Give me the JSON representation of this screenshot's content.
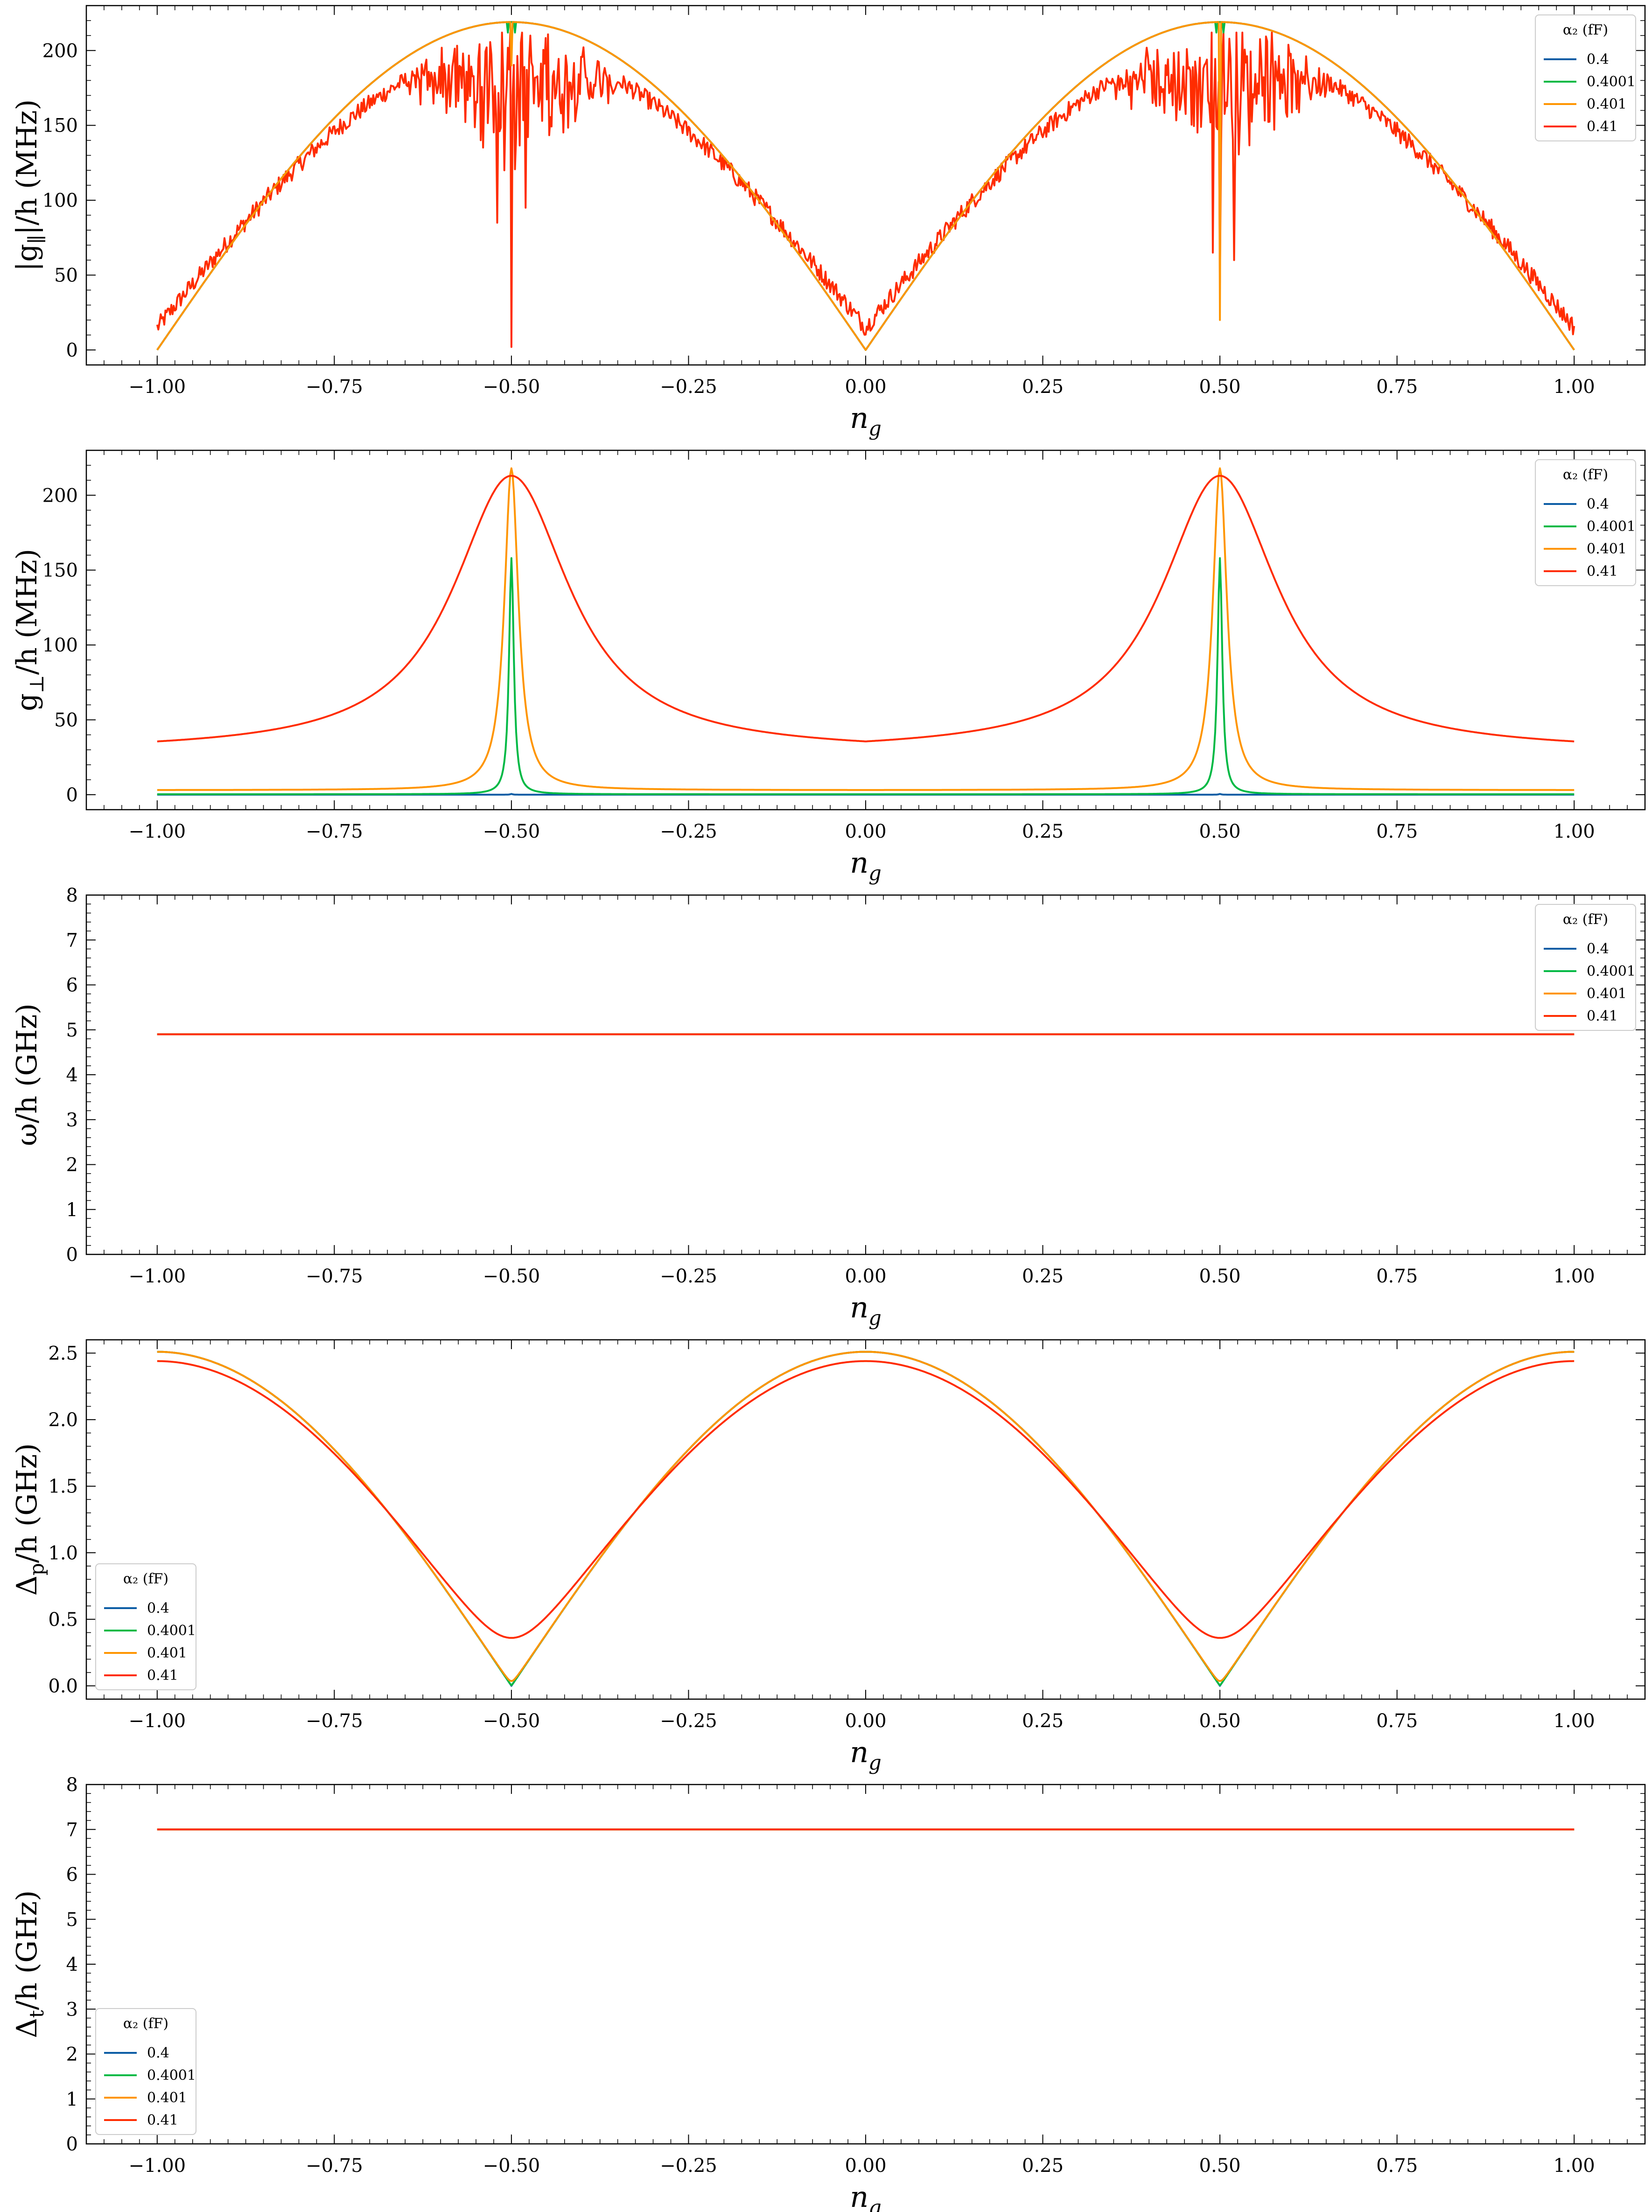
{
  "colors": {
    "s0": "#0C5DA5",
    "s1": "#00B945",
    "s2": "#FF9500",
    "s3": "#FF2C00",
    "axis": "#000000"
  },
  "legend_title": "α₂ (fF)",
  "chart_data": [
    {
      "id": "p1",
      "type": "line",
      "xlabel": "n_g",
      "ylabel": "|g_∥|/h (MHz)",
      "xlim": [
        -1.1,
        1.1
      ],
      "ylim": [
        -10,
        230
      ],
      "xticks": [
        -1.0,
        -0.75,
        -0.5,
        -0.25,
        0.0,
        0.25,
        0.5,
        0.75,
        1.0
      ],
      "xtick_labels": [
        "−1.00",
        "−0.75",
        "−0.50",
        "−0.25",
        "0.00",
        "0.25",
        "0.50",
        "0.75",
        "1.00"
      ],
      "yticks": [
        0,
        50,
        100,
        150,
        200
      ],
      "ytick_labels": [
        "0",
        "50",
        "100",
        "150",
        "200"
      ],
      "legend_loc": "upper right",
      "legend_title": "α₂ (fF)",
      "series": [
        {
          "name": "0.4",
          "color": "#0C5DA5",
          "x": [
            -1.0,
            -0.75,
            -0.5,
            -0.25,
            0.0,
            0.25,
            0.5,
            0.75,
            1.0
          ],
          "y": [
            0,
            155,
            219,
            155,
            0,
            155,
            219,
            155,
            0
          ]
        },
        {
          "name": "0.4001",
          "color": "#00B945",
          "x": [
            -1.0,
            -0.75,
            -0.5,
            -0.25,
            0.0,
            0.25,
            0.5,
            0.75,
            1.0
          ],
          "y": [
            0,
            155,
            219,
            155,
            0,
            155,
            219,
            155,
            0
          ],
          "dips": [
            [
              -0.505,
              212
            ],
            [
              -0.495,
              212
            ],
            [
              0.495,
              212
            ],
            [
              0.505,
              212
            ]
          ]
        },
        {
          "name": "0.401",
          "color": "#FF9500",
          "x": [
            -1.0,
            -0.75,
            -0.5,
            -0.25,
            0.0,
            0.25,
            0.5,
            0.75,
            1.0
          ],
          "y": [
            0,
            155,
            219,
            155,
            0,
            155,
            219,
            155,
            0
          ],
          "dips": [
            [
              -0.5,
              190
            ],
            [
              0.5,
              20
            ]
          ]
        },
        {
          "name": "0.41",
          "color": "#FF2C00",
          "x": [
            -1.0,
            -0.9,
            -0.75,
            -0.6,
            -0.5,
            -0.4,
            -0.25,
            -0.1,
            0.0,
            0.1,
            0.25,
            0.4,
            0.5,
            0.6,
            0.75,
            0.9,
            1.0
          ],
          "y": [
            20,
            90,
            148,
            190,
            200,
            190,
            140,
            70,
            25,
            70,
            140,
            190,
            200,
            190,
            148,
            90,
            20
          ],
          "dips": [
            [
              -0.52,
              85
            ],
            [
              -0.51,
              120
            ],
            [
              -0.5,
              2
            ],
            [
              -0.48,
              95
            ],
            [
              0.49,
              65
            ],
            [
              0.5,
              45
            ],
            [
              0.52,
              60
            ]
          ]
        }
      ]
    },
    {
      "id": "p2",
      "type": "line",
      "xlabel": "n_g",
      "ylabel": "g_⊥/h (MHz)",
      "xlim": [
        -1.1,
        1.1
      ],
      "ylim": [
        -10,
        230
      ],
      "xticks": [
        -1.0,
        -0.75,
        -0.5,
        -0.25,
        0.0,
        0.25,
        0.5,
        0.75,
        1.0
      ],
      "xtick_labels": [
        "−1.00",
        "−0.75",
        "−0.50",
        "−0.25",
        "0.00",
        "0.25",
        "0.50",
        "0.75",
        "1.00"
      ],
      "yticks": [
        0,
        50,
        100,
        150,
        200
      ],
      "ytick_labels": [
        "0",
        "50",
        "100",
        "150",
        "200"
      ],
      "legend_loc": "upper right",
      "legend_title": "α₂ (fF)",
      "series": [
        {
          "name": "0.4",
          "color": "#0C5DA5",
          "x": [
            -1.0,
            -0.5,
            0.0,
            0.5,
            1.0
          ],
          "y": [
            0,
            0.5,
            0,
            0.5,
            0
          ]
        },
        {
          "name": "0.4001",
          "color": "#00B945",
          "x": [
            -1.0,
            -0.5,
            0.0,
            0.5,
            1.0
          ],
          "y": [
            0.3,
            158,
            0.3,
            158,
            0.3
          ]
        },
        {
          "name": "0.401",
          "color": "#FF9500",
          "x": [
            -1.0,
            -0.5,
            0.0,
            0.5,
            1.0
          ],
          "y": [
            3,
            218,
            3,
            218,
            3
          ]
        },
        {
          "name": "0.41",
          "color": "#FF2C00",
          "x": [
            -1.0,
            -0.5,
            0.0,
            0.5,
            1.0
          ],
          "y": [
            28.5,
            213,
            28.5,
            213,
            28.5
          ]
        }
      ]
    },
    {
      "id": "p3",
      "type": "line",
      "xlabel": "n_g",
      "ylabel": "ω/h (GHz)",
      "xlim": [
        -1.1,
        1.1
      ],
      "ylim": [
        0,
        8
      ],
      "xticks": [
        -1.0,
        -0.75,
        -0.5,
        -0.25,
        0.0,
        0.25,
        0.5,
        0.75,
        1.0
      ],
      "xtick_labels": [
        "−1.00",
        "−0.75",
        "−0.50",
        "−0.25",
        "0.00",
        "0.25",
        "0.50",
        "0.75",
        "1.00"
      ],
      "yticks": [
        0,
        1,
        2,
        3,
        4,
        5,
        6,
        7,
        8
      ],
      "ytick_labels": [
        "0",
        "1",
        "2",
        "3",
        "4",
        "5",
        "6",
        "7",
        "8"
      ],
      "legend_loc": "upper right",
      "legend_title": "α₂ (fF)",
      "series": [
        {
          "name": "0.4",
          "color": "#0C5DA5",
          "x": [
            -1.0,
            1.0
          ],
          "y": [
            4.9,
            4.9
          ]
        },
        {
          "name": "0.4001",
          "color": "#00B945",
          "x": [
            -1.0,
            1.0
          ],
          "y": [
            4.9,
            4.9
          ]
        },
        {
          "name": "0.401",
          "color": "#FF9500",
          "x": [
            -1.0,
            1.0
          ],
          "y": [
            4.9,
            4.9
          ]
        },
        {
          "name": "0.41",
          "color": "#FF2C00",
          "x": [
            -1.0,
            1.0
          ],
          "y": [
            4.9,
            4.9
          ]
        }
      ]
    },
    {
      "id": "p4",
      "type": "line",
      "xlabel": "n_g",
      "ylabel": "Δ_p/h (GHz)",
      "xlim": [
        -1.1,
        1.1
      ],
      "ylim": [
        -0.1,
        2.6
      ],
      "xticks": [
        -1.0,
        -0.75,
        -0.5,
        -0.25,
        0.0,
        0.25,
        0.5,
        0.75,
        1.0
      ],
      "xtick_labels": [
        "−1.00",
        "−0.75",
        "−0.50",
        "−0.25",
        "0.00",
        "0.25",
        "0.50",
        "0.75",
        "1.00"
      ],
      "yticks": [
        0.0,
        0.5,
        1.0,
        1.5,
        2.0,
        2.5
      ],
      "ytick_labels": [
        "0.0",
        "0.5",
        "1.0",
        "1.5",
        "2.0",
        "2.5"
      ],
      "legend_loc": "lower left",
      "legend_title": "α₂ (fF)",
      "series": [
        {
          "name": "0.4",
          "color": "#0C5DA5",
          "x": [
            -1.0,
            -0.5,
            0.0,
            0.5,
            1.0
          ],
          "y": [
            2.51,
            0.0,
            2.51,
            0.0,
            2.51
          ]
        },
        {
          "name": "0.4001",
          "color": "#00B945",
          "x": [
            -1.0,
            -0.5,
            0.0,
            0.5,
            1.0
          ],
          "y": [
            2.51,
            0.005,
            2.51,
            0.005,
            2.51
          ]
        },
        {
          "name": "0.401",
          "color": "#FF9500",
          "x": [
            -1.0,
            -0.5,
            0.0,
            0.5,
            1.0
          ],
          "y": [
            2.51,
            0.036,
            2.51,
            0.036,
            2.51
          ]
        },
        {
          "name": "0.41",
          "color": "#FF2C00",
          "x": [
            -1.0,
            -0.5,
            0.0,
            0.5,
            1.0
          ],
          "y": [
            2.44,
            0.36,
            2.44,
            0.36,
            2.44
          ]
        }
      ]
    },
    {
      "id": "p5",
      "type": "line",
      "xlabel": "n_g",
      "ylabel": "Δ_t/h (GHz)",
      "xlim": [
        -1.1,
        1.1
      ],
      "ylim": [
        0,
        8
      ],
      "xticks": [
        -1.0,
        -0.75,
        -0.5,
        -0.25,
        0.0,
        0.25,
        0.5,
        0.75,
        1.0
      ],
      "xtick_labels": [
        "−1.00",
        "−0.75",
        "−0.50",
        "−0.25",
        "0.00",
        "0.25",
        "0.50",
        "0.75",
        "1.00"
      ],
      "yticks": [
        0,
        1,
        2,
        3,
        4,
        5,
        6,
        7,
        8
      ],
      "ytick_labels": [
        "0",
        "1",
        "2",
        "3",
        "4",
        "5",
        "6",
        "7",
        "8"
      ],
      "legend_loc": "lower left",
      "legend_title": "α₂ (fF)",
      "series": [
        {
          "name": "0.4",
          "color": "#0C5DA5",
          "x": [
            -1.0,
            1.0
          ],
          "y": [
            7.0,
            7.0
          ]
        },
        {
          "name": "0.4001",
          "color": "#00B945",
          "x": [
            -1.0,
            1.0
          ],
          "y": [
            7.0,
            7.0
          ]
        },
        {
          "name": "0.401",
          "color": "#FF9500",
          "x": [
            -1.0,
            1.0
          ],
          "y": [
            7.0,
            7.0
          ]
        },
        {
          "name": "0.41",
          "color": "#FF2C00",
          "x": [
            -1.0,
            1.0
          ],
          "y": [
            7.0,
            7.0
          ]
        }
      ]
    }
  ]
}
